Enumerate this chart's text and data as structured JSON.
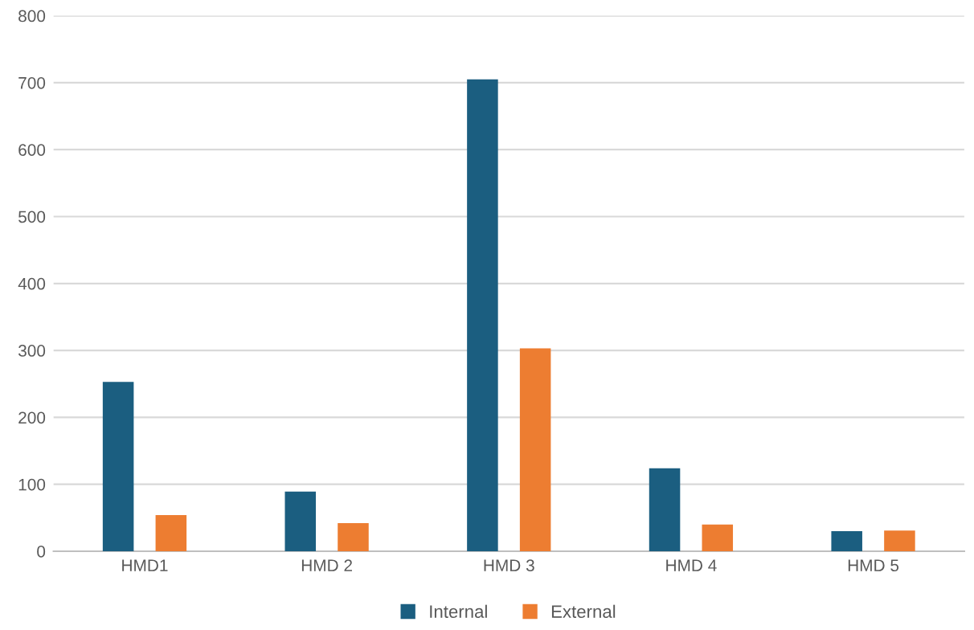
{
  "chart_data": {
    "type": "bar",
    "categories": [
      "HMD1",
      "HMD 2",
      "HMD 3",
      "HMD 4",
      "HMD 5"
    ],
    "series": [
      {
        "name": "Internal",
        "color": "#1b5e80",
        "values": [
          253,
          89,
          705,
          124,
          30
        ]
      },
      {
        "name": "External",
        "color": "#ed7d31",
        "values": [
          54,
          42,
          303,
          40,
          31
        ]
      }
    ],
    "ylim": [
      0,
      800
    ],
    "yticks": [
      0,
      100,
      200,
      300,
      400,
      500,
      600,
      700,
      800
    ],
    "grid": "y",
    "legend": "bottom"
  }
}
